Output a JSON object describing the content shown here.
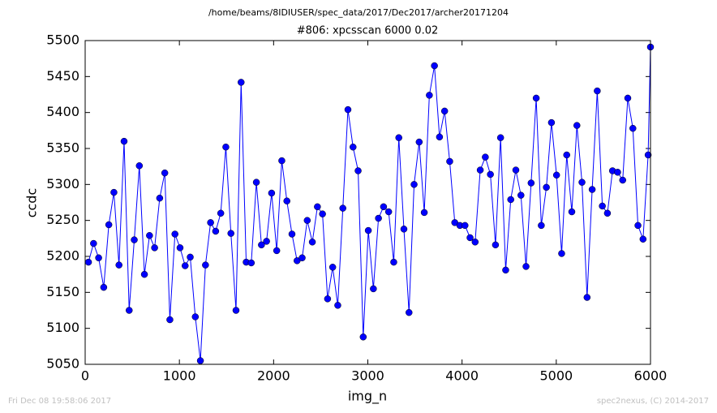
{
  "chart_data": {
    "type": "line",
    "suptitle": "/home/beams/8IDIUSER/spec_data/2017/Dec2017/archer20171204",
    "title": "#806: xpcsscan 6000 0.02",
    "xlabel": "img_n",
    "ylabel": "ccdc",
    "footer_left": "Fri Dec 08 19:58:06 2017",
    "footer_right": "spec2nexus, (C) 2014-2017",
    "xlim": [
      0,
      6000
    ],
    "xticks": [
      0,
      1000,
      2000,
      3000,
      4000,
      5000,
      6000
    ],
    "ylim": [
      5050,
      5500
    ],
    "yticks": [
      5050,
      5100,
      5150,
      5200,
      5250,
      5300,
      5350,
      5400,
      5450,
      5500
    ],
    "x": [
      35,
      89,
      143,
      197,
      251,
      305,
      359,
      413,
      467,
      521,
      575,
      629,
      683,
      737,
      791,
      845,
      899,
      953,
      1007,
      1061,
      1115,
      1169,
      1223,
      1277,
      1331,
      1385,
      1439,
      1493,
      1547,
      1601,
      1655,
      1709,
      1763,
      1817,
      1871,
      1925,
      1979,
      2033,
      2087,
      2141,
      2195,
      2249,
      2303,
      2357,
      2411,
      2465,
      2519,
      2573,
      2627,
      2681,
      2735,
      2789,
      2843,
      2897,
      2951,
      3005,
      3059,
      3113,
      3167,
      3221,
      3275,
      3329,
      3383,
      3437,
      3491,
      3545,
      3599,
      3653,
      3707,
      3761,
      3815,
      3869,
      3923,
      3977,
      4031,
      4085,
      4139,
      4193,
      4247,
      4301,
      4355,
      4409,
      4463,
      4517,
      4571,
      4625,
      4679,
      4733,
      4787,
      4841,
      4895,
      4949,
      5003,
      5057,
      5111,
      5165,
      5219,
      5273,
      5327,
      5381,
      5435,
      5489,
      5543,
      5597,
      5651,
      5705,
      5759,
      5813,
      5867,
      5921,
      5975,
      6000
    ],
    "series": [
      {
        "name": "ccdc",
        "color": "#0000ff",
        "values": [
          5192,
          5218,
          5198,
          5157,
          5244,
          5289,
          5188,
          5360,
          5125,
          5223,
          5326,
          5175,
          5229,
          5212,
          5281,
          5316,
          5112,
          5231,
          5212,
          5187,
          5199,
          5116,
          5055,
          5188,
          5247,
          5235,
          5260,
          5352,
          5232,
          5125,
          5442,
          5192,
          5191,
          5303,
          5216,
          5221,
          5288,
          5208,
          5333,
          5277,
          5231,
          5194,
          5198,
          5250,
          5220,
          5269,
          5259,
          5141,
          5185,
          5132,
          5267,
          5404,
          5352,
          5319,
          5088,
          5236,
          5155,
          5253,
          5269,
          5262,
          5192,
          5365,
          5238,
          5122,
          5300,
          5359,
          5261,
          5424,
          5465,
          5366,
          5402,
          5332,
          5247,
          5243,
          5243,
          5226,
          5220,
          5320,
          5338,
          5314,
          5216,
          5365,
          5181,
          5279,
          5320,
          5285,
          5186,
          5302,
          5420,
          5243,
          5296,
          5386,
          5313,
          5204,
          5341,
          5262,
          5382,
          5303,
          5143,
          5293,
          5430,
          5270,
          5260,
          5319,
          5317,
          5306,
          5420,
          5378,
          5243,
          5224,
          5341,
          5491
        ]
      }
    ]
  }
}
